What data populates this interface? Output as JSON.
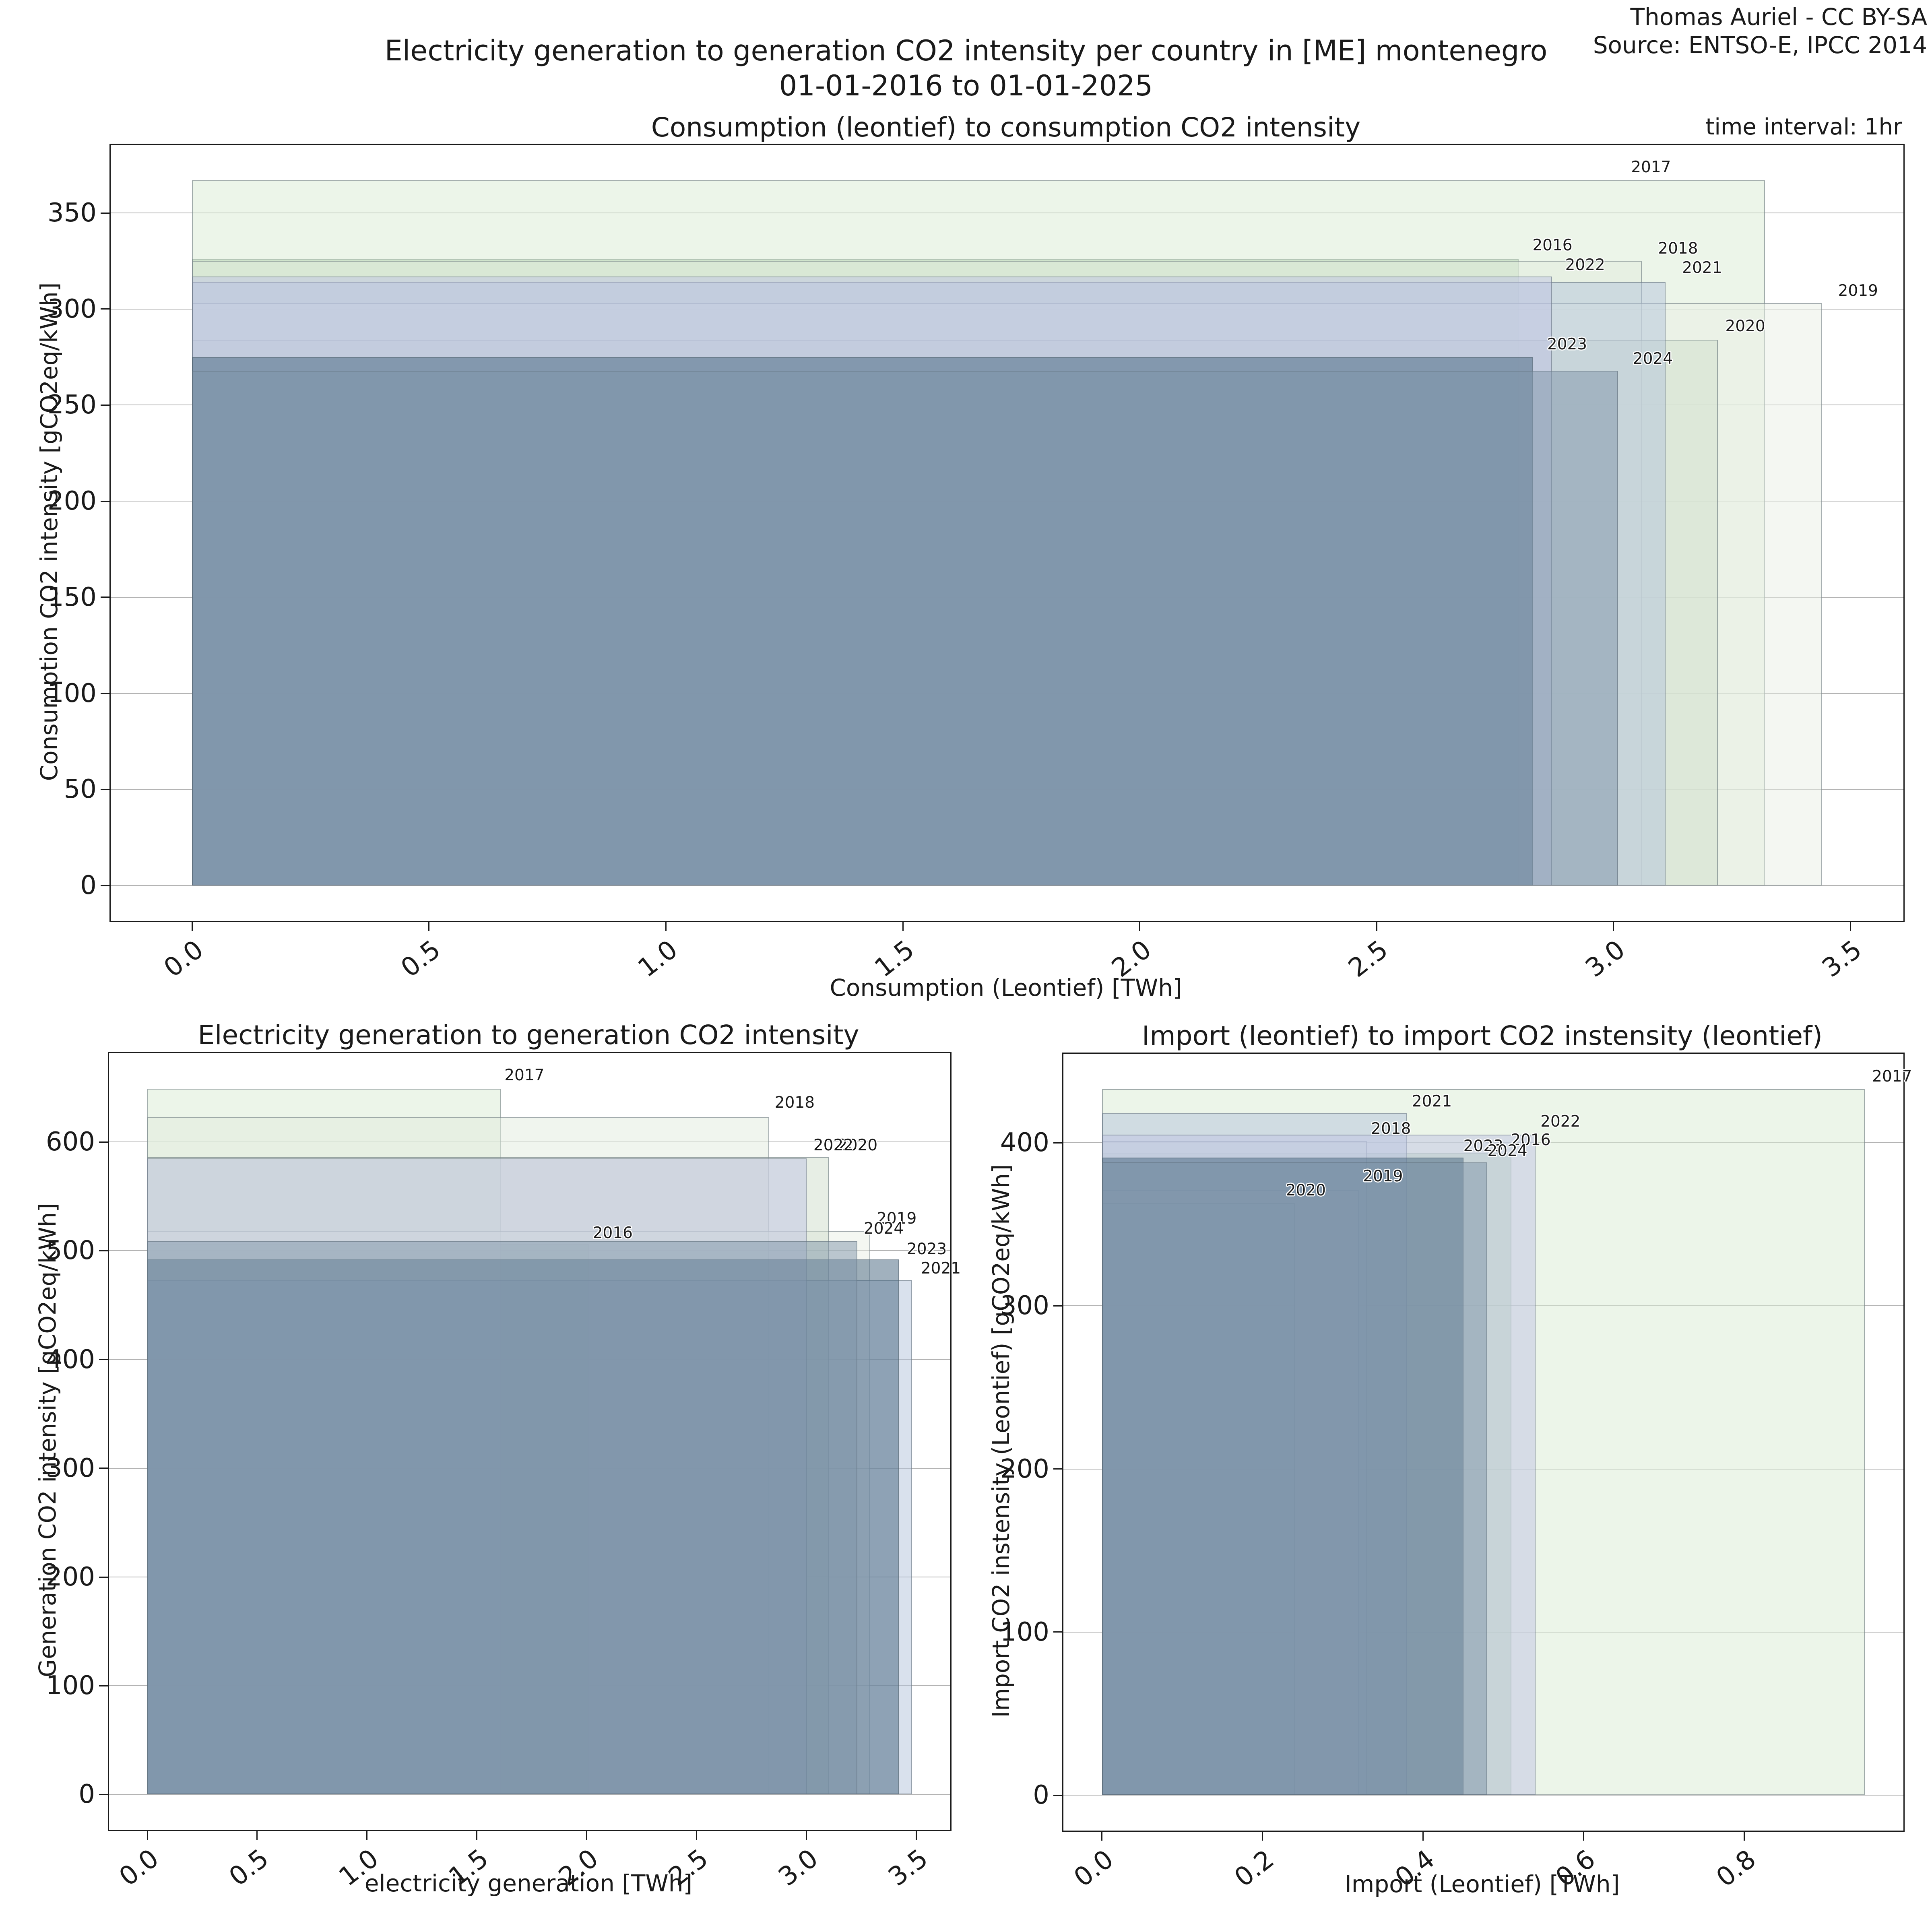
{
  "header": {
    "title_line1": "Electricity generation to generation CO2 intensity per country in [ME] montenegro",
    "title_line2": "01-01-2016 to 01-01-2025",
    "attribution_line1": "Thomas Auriel - CC BY-SA",
    "attribution_line2": "Source: ENTSO-E, IPCC 2014",
    "time_interval": "time interval: 1hr"
  },
  "palette": {
    "2016": "#8dbb8a",
    "2017": "#d9ecd4",
    "2018": "#e1ebdd",
    "2019": "#e9efe5",
    "2020": "#cfdecb",
    "2021": "#b4c4dc",
    "2022": "#bfc4e4",
    "2023": "#44637e",
    "2024": "#7f96a9"
  },
  "style": {
    "rect_alpha_hex": "80",
    "rect_edge": "rgba(85,100,110,0.5)",
    "grid_color": "#b4b4b4",
    "spine_color": "#1a1a1a"
  },
  "chart_data": [
    {
      "type": "overlapping-rectangles",
      "title": "Consumption (leontief) to consumption CO2 intensity",
      "xlabel": "Consumption (Leontief) [TWh]",
      "ylabel": "Consumption CO2 intensity [gCO2eq/kWh]",
      "xlim": [
        -0.172,
        3.612
      ],
      "ylim": [
        -18.4,
        385.4
      ],
      "xticks": [
        "0.0",
        "0.5",
        "1.0",
        "1.5",
        "2.0",
        "2.5",
        "3.0",
        "3.5"
      ],
      "yticks": [
        "0",
        "50",
        "100",
        "150",
        "200",
        "250",
        "300",
        "350"
      ],
      "grid": "horizontal",
      "legend": "none",
      "series": [
        {
          "year": "2016",
          "x": 2.8,
          "y": 326,
          "label_x": 2.829,
          "label_y": 329.0
        },
        {
          "year": "2017",
          "x": 3.32,
          "y": 367,
          "label_x": 3.037,
          "label_y": 369.6
        },
        {
          "year": "2018",
          "x": 3.06,
          "y": 325,
          "label_x": 3.094,
          "label_y": 327.3
        },
        {
          "year": "2019",
          "x": 3.44,
          "y": 303,
          "label_x": 3.474,
          "label_y": 305.4
        },
        {
          "year": "2020",
          "x": 3.22,
          "y": 284,
          "label_x": 3.236,
          "label_y": 287.0
        },
        {
          "year": "2021",
          "x": 3.11,
          "y": 314,
          "label_x": 3.145,
          "label_y": 317.4
        },
        {
          "year": "2022",
          "x": 2.87,
          "y": 317,
          "label_x": 2.898,
          "label_y": 318.9
        },
        {
          "year": "2023",
          "x": 2.83,
          "y": 275,
          "label_x": 2.86,
          "label_y": 277.5
        },
        {
          "year": "2024",
          "x": 3.01,
          "y": 268,
          "label_x": 3.041,
          "label_y": 270.1
        }
      ]
    },
    {
      "type": "overlapping-rectangles",
      "title": "Electricity generation to generation CO2 intensity",
      "xlabel": "electricity generation [TWh]",
      "ylabel": "Generation CO2 intensity [gCO2eq/kWh]",
      "xlim": [
        -0.174,
        3.654
      ],
      "ylim": [
        -32.4,
        681.9
      ],
      "xticks": [
        "0.0",
        "0.5",
        "1.0",
        "1.5",
        "2.0",
        "2.5",
        "3.0",
        "3.5"
      ],
      "yticks": [
        "0",
        "100",
        "200",
        "300",
        "400",
        "500",
        "600"
      ],
      "grid": "horizontal",
      "legend": "none",
      "series": [
        {
          "year": "2016",
          "x": 2.01,
          "y": 506,
          "label_x": 2.027,
          "label_y": 508.9
        },
        {
          "year": "2017",
          "x": 1.61,
          "y": 649,
          "label_x": 1.625,
          "label_y": 654.2
        },
        {
          "year": "2018",
          "x": 2.83,
          "y": 623,
          "label_x": 2.855,
          "label_y": 628.8
        },
        {
          "year": "2019",
          "x": 3.29,
          "y": 518,
          "label_x": 3.319,
          "label_y": 522.5
        },
        {
          "year": "2020",
          "x": 3.1,
          "y": 586,
          "label_x": 3.141,
          "label_y": 589.7
        },
        {
          "year": "2021",
          "x": 3.48,
          "y": 473,
          "label_x": 3.52,
          "label_y": 476.4
        },
        {
          "year": "2022",
          "x": 3.0,
          "y": 585,
          "label_x": 3.031,
          "label_y": 589.7
        },
        {
          "year": "2023",
          "x": 3.42,
          "y": 492,
          "label_x": 3.456,
          "label_y": 494.1
        },
        {
          "year": "2024",
          "x": 3.23,
          "y": 509,
          "label_x": 3.26,
          "label_y": 513.3
        }
      ]
    },
    {
      "type": "overlapping-rectangles",
      "title": "Import (leontief) to import CO2 instensity (leontief)",
      "xlabel": "Import (Leontief) [TWh]",
      "ylabel": "Import CO2 instensity (Leontief) [gCO2eq/kWh]",
      "xlim": [
        -0.048,
        0.998
      ],
      "ylim": [
        -21.7,
        454.6
      ],
      "xticks": [
        "0.0",
        "0.2",
        "0.4",
        "0.6",
        "0.8"
      ],
      "yticks": [
        "0",
        "100",
        "200",
        "300",
        "400"
      ],
      "grid": "horizontal",
      "legend": "none",
      "series": [
        {
          "year": "2016",
          "x": 0.51,
          "y": 394,
          "label_x": 0.509,
          "label_y": 396.8
        },
        {
          "year": "2017",
          "x": 0.95,
          "y": 433,
          "label_x": 0.959,
          "label_y": 435.8
        },
        {
          "year": "2018",
          "x": 0.33,
          "y": 401,
          "label_x": 0.335,
          "label_y": 403.7
        },
        {
          "year": "2019",
          "x": 0.32,
          "y": 371,
          "label_x": 0.325,
          "label_y": 374.6
        },
        {
          "year": "2020",
          "x": 0.24,
          "y": 363,
          "label_x": 0.229,
          "label_y": 365.9
        },
        {
          "year": "2021",
          "x": 0.38,
          "y": 418,
          "label_x": 0.386,
          "label_y": 420.5
        },
        {
          "year": "2022",
          "x": 0.54,
          "y": 405,
          "label_x": 0.546,
          "label_y": 408.1
        },
        {
          "year": "2023",
          "x": 0.45,
          "y": 391,
          "label_x": 0.45,
          "label_y": 393.1
        },
        {
          "year": "2024",
          "x": 0.48,
          "y": 388,
          "label_x": 0.48,
          "label_y": 390.1
        }
      ]
    }
  ]
}
